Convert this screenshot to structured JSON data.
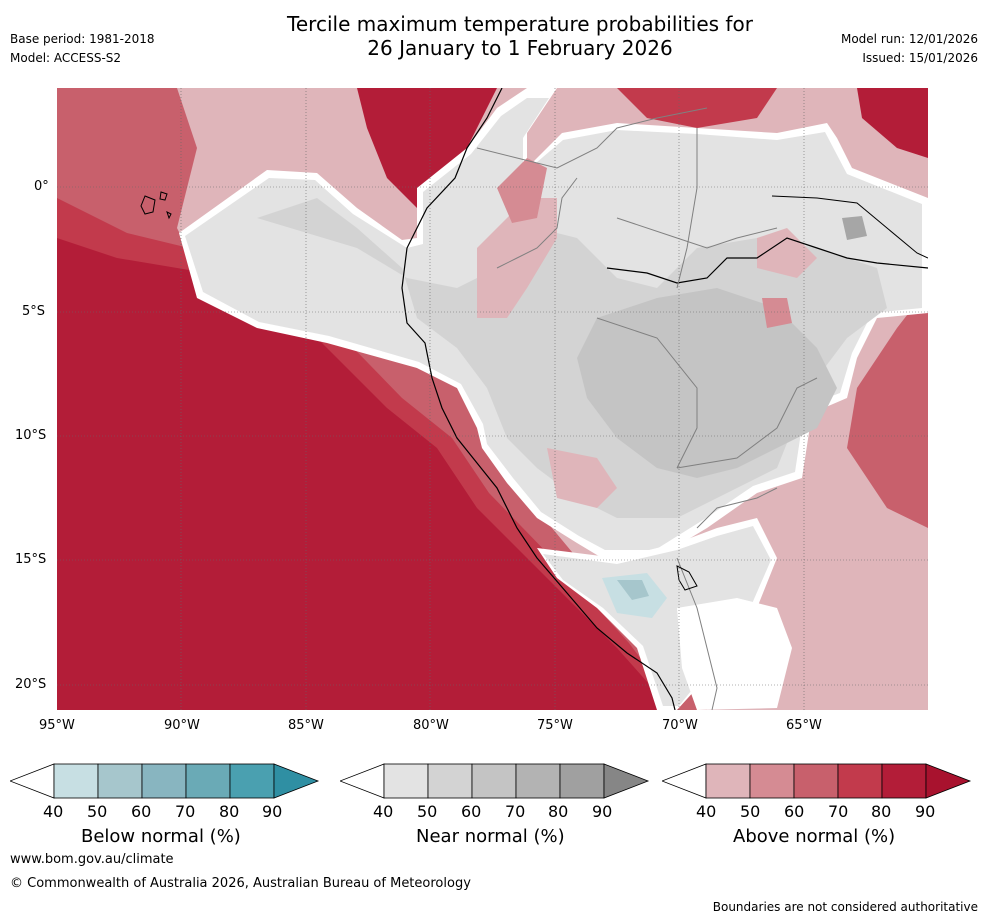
{
  "header": {
    "base_period": "Base period: 1981-2018",
    "model": "Model: ACCESS-S2",
    "title_line1": "Tercile maximum temperature probabilities for",
    "title_line2": "26 January to 1 February 2026",
    "model_run": "Model run: 12/01/2026",
    "issued": "Issued: 15/01/2026"
  },
  "map": {
    "lat_labels": [
      "0°",
      "5°S",
      "10°S",
      "15°S",
      "20°S"
    ],
    "lon_labels": [
      "95°W",
      "90°W",
      "85°W",
      "80°W",
      "75°W",
      "70°W",
      "65°W"
    ],
    "colors": {
      "above_90": "#b31d38",
      "above_80": "#c23a4c",
      "above_70": "#c8606c",
      "above_60": "#d58b93",
      "above_50": "#dfb5ba",
      "near_50": "#e3e3e3",
      "near_60": "#d3d3d3",
      "near_70": "#c4c4c4",
      "near_80": "#a6a6a6",
      "below_50": "#c7dfe3",
      "below_60": "#a6c6cc"
    }
  },
  "colorbars": [
    {
      "name": "below",
      "label": "Below normal (%)",
      "ticks": [
        "40",
        "50",
        "60",
        "70",
        "80",
        "90"
      ],
      "colors": [
        "#c7dfe3",
        "#a6c6cc",
        "#88b5c0",
        "#6aaab6",
        "#4aa0b0",
        "#2f8fa3"
      ]
    },
    {
      "name": "near",
      "label": "Near normal (%)",
      "ticks": [
        "40",
        "50",
        "60",
        "70",
        "80",
        "90"
      ],
      "colors": [
        "#e3e3e3",
        "#d3d3d3",
        "#c4c4c4",
        "#b3b3b3",
        "#a0a0a0",
        "#868686"
      ]
    },
    {
      "name": "above",
      "label": "Above normal (%)",
      "ticks": [
        "40",
        "50",
        "60",
        "70",
        "80",
        "90"
      ],
      "colors": [
        "#dfb5ba",
        "#d58b93",
        "#c8606c",
        "#c23a4c",
        "#b31d38",
        "#a8122e"
      ]
    }
  ],
  "footer": {
    "website": "www.bom.gov.au/climate",
    "copyright": "© Commonwealth of Australia 2026, Australian Bureau of Meteorology",
    "disclaimer": "Boundaries are not considered authoritative"
  }
}
